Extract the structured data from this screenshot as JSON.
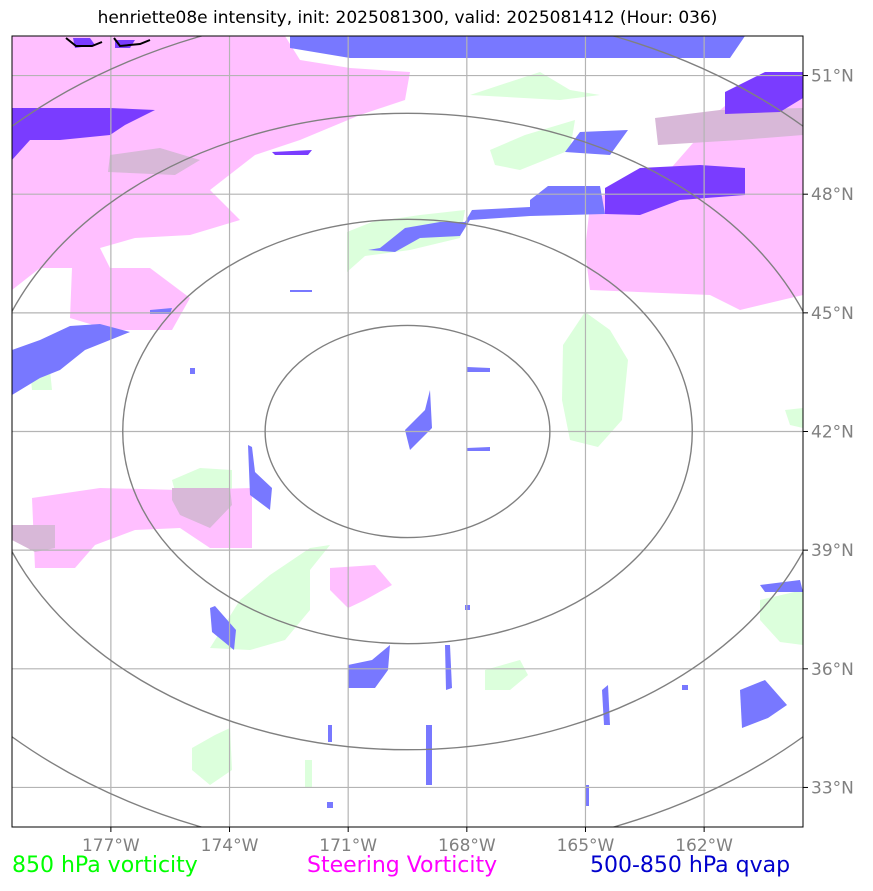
{
  "title": "henriette08e intensity, init: 2025081300, valid: 2025081412 (Hour: 036)",
  "legend": [
    {
      "label": "850 hPa vorticity",
      "color": "#00ff00"
    },
    {
      "label": "Steering Vorticity",
      "color": "#ff00ff"
    },
    {
      "label": "500-850 hPa qvap",
      "color": "#0000cc"
    }
  ],
  "colors": {
    "vorticity_fill": "#dcffdc",
    "steering_fill": "#ffbfff",
    "qvap_fill": "#7878ff",
    "qvap_dark_fill": "#7a3cff",
    "overlap_fill": "#d8b8d8",
    "grid": "#b4b4b4",
    "range_rings": "#808080",
    "tick_labels": "#808080"
  },
  "chart_data": {
    "type": "map",
    "projection": "plate carree",
    "center_marker": {
      "lon": -169.5,
      "lat": 42.0
    },
    "xlim": [
      -179.5,
      -159.5
    ],
    "ylim": [
      32.0,
      52.0
    ],
    "x_ticks": [
      -177,
      -174,
      -171,
      -168,
      -165,
      -162
    ],
    "x_tick_labels": [
      "177°W",
      "174°W",
      "171°W",
      "168°W",
      "165°W",
      "162°W"
    ],
    "y_ticks": [
      33,
      36,
      39,
      42,
      45,
      48,
      51
    ],
    "y_tick_labels": [
      "33°N",
      "36°N",
      "39°N",
      "42°N",
      "45°N",
      "48°N",
      "51°N"
    ],
    "range_rings_deg": [
      3.6,
      7.2,
      10.8,
      14.4
    ],
    "grid": true,
    "layers": [
      {
        "name": "850 hPa vorticity",
        "color_key": "vorticity_fill"
      },
      {
        "name": "Steering Vorticity",
        "color_key": "steering_fill"
      },
      {
        "name": "500-850 hPa qvap",
        "color_key": "qvap_fill"
      }
    ]
  }
}
